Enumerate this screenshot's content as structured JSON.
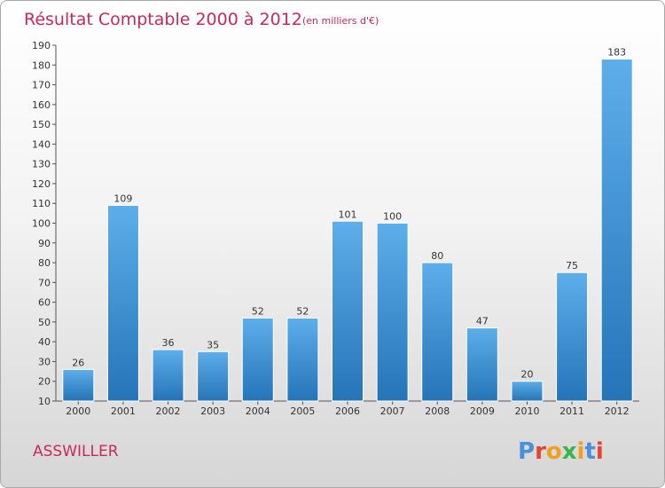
{
  "chart_data": {
    "type": "bar",
    "title": "Résultat Comptable 2000 à 2012",
    "subtitle": "(en milliers d'€)",
    "categories": [
      "2000",
      "2001",
      "2002",
      "2003",
      "2004",
      "2005",
      "2006",
      "2007",
      "2008",
      "2009",
      "2010",
      "2011",
      "2012"
    ],
    "values": [
      26,
      109,
      36,
      35,
      52,
      52,
      101,
      100,
      80,
      47,
      20,
      75,
      183
    ],
    "ylim": [
      10,
      190
    ],
    "yticks": [
      10,
      20,
      30,
      40,
      50,
      60,
      70,
      80,
      90,
      100,
      110,
      120,
      130,
      140,
      150,
      160,
      170,
      180,
      190
    ],
    "grid": false,
    "xlabel": "",
    "ylabel": "",
    "bar_color": "#3d8fd4"
  },
  "commune": "ASSWILLER",
  "logo": {
    "letters": [
      "P",
      "r",
      "o",
      "x",
      "i",
      "t",
      "i"
    ],
    "colors": [
      "#4a90d9",
      "#e8432e",
      "#f0a01e",
      "#3ab54a",
      "#f0a01e",
      "#4a90d9",
      "#e8432e"
    ]
  },
  "colors": {
    "title": "#c8285a"
  }
}
